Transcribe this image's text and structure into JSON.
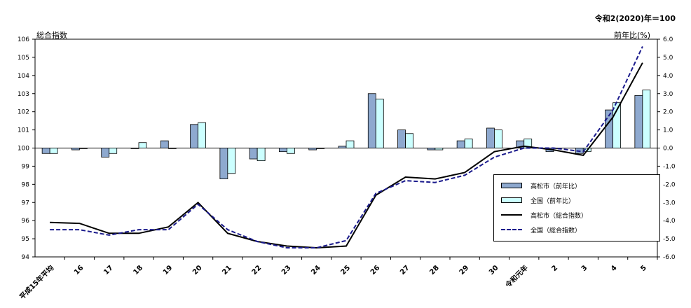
{
  "header": {
    "base_note": "令和2(2020)年＝100",
    "left_axis_label": "総合指数",
    "right_axis_label": "前年比(%)"
  },
  "legend": {
    "items": [
      {
        "label": "高松市（前年比）",
        "kind": "bar",
        "color": "#8ea9cf"
      },
      {
        "label": "全国（前年比）",
        "kind": "bar",
        "color": "#ccffff"
      },
      {
        "label": "高松市（総合指数）",
        "kind": "line",
        "color": "#000000"
      },
      {
        "label": "全国（総合指数）",
        "kind": "dashed-line",
        "color": "#1a1a8c"
      }
    ]
  },
  "chart_data": {
    "type": "bar",
    "categories": [
      "平成15年平均",
      "16",
      "17",
      "18",
      "19",
      "20",
      "21",
      "22",
      "23",
      "24",
      "25",
      "26",
      "27",
      "28",
      "29",
      "30",
      "令和元年",
      "2",
      "3",
      "4",
      "5"
    ],
    "left_axis": {
      "min": 94,
      "max": 106,
      "ticks": [
        "94",
        "95",
        "96",
        "97",
        "98",
        "99",
        "100",
        "101",
        "102",
        "103",
        "104",
        "105",
        "106"
      ]
    },
    "right_axis": {
      "min": -6.0,
      "max": 6.0,
      "ticks": [
        "-6.0",
        "-5.0",
        "-4.0",
        "-3.0",
        "-2.0",
        "-1.0",
        "0.0",
        "1.0",
        "2.0",
        "3.0",
        "4.0",
        "5.0",
        "6.0"
      ]
    },
    "series": [
      {
        "name": "高松市（前年比）",
        "kind": "bar",
        "axis": "right",
        "values": [
          -0.3,
          -0.1,
          -0.5,
          0.0,
          0.4,
          1.3,
          -1.7,
          -0.6,
          -0.2,
          -0.1,
          0.1,
          3.0,
          1.0,
          -0.1,
          0.4,
          1.1,
          0.4,
          -0.2,
          -0.3,
          2.1,
          2.9
        ]
      },
      {
        "name": "全国（前年比）",
        "kind": "bar",
        "axis": "right",
        "values": [
          -0.3,
          0.0,
          -0.3,
          0.3,
          0.0,
          1.4,
          -1.4,
          -0.7,
          -0.3,
          0.0,
          0.4,
          2.7,
          0.8,
          -0.1,
          0.5,
          1.0,
          0.5,
          0.0,
          -0.2,
          2.5,
          3.2
        ]
      },
      {
        "name": "高松市（総合指数）",
        "kind": "line",
        "axis": "left",
        "values": [
          95.9,
          95.85,
          95.3,
          95.3,
          95.65,
          97.0,
          95.3,
          94.85,
          94.6,
          94.5,
          94.6,
          97.4,
          98.4,
          98.3,
          98.65,
          99.8,
          100.1,
          99.9,
          99.6,
          101.7,
          104.7
        ]
      },
      {
        "name": "全国（総合指数）",
        "kind": "dashed-line",
        "axis": "left",
        "values": [
          95.5,
          95.5,
          95.2,
          95.5,
          95.5,
          96.9,
          95.5,
          94.85,
          94.5,
          94.5,
          94.9,
          97.5,
          98.2,
          98.1,
          98.5,
          99.5,
          100.0,
          100.0,
          99.8,
          102.1,
          105.6
        ]
      }
    ]
  }
}
